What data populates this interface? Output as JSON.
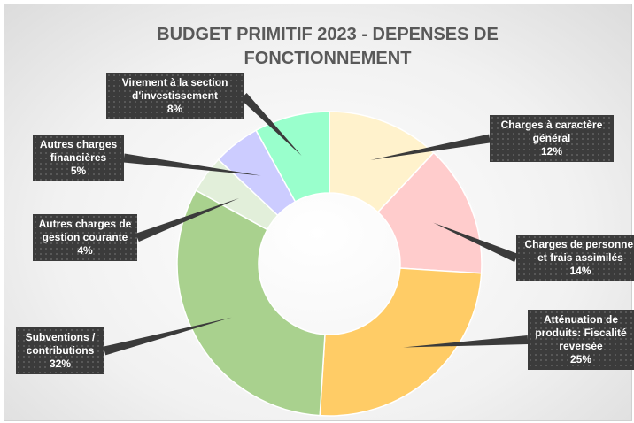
{
  "chart_data": {
    "type": "donut",
    "title": "BUDGET PRIMITIF 2023 - DEPENSES DE FONCTIONNEMENT",
    "categories": [
      "Charges à caractère général",
      "Charges de personnel et frais assimilés",
      "Atténuation de produits: Fiscalité reversée",
      "Subventions / contributions",
      "Autres charges de gestion courante",
      "Autres charges financières",
      "Virement à la section d'investissement"
    ],
    "values": [
      12,
      14,
      25,
      32,
      4,
      5,
      8
    ],
    "value_labels": [
      "12%",
      "14%",
      "25%",
      "32%",
      "4%",
      "5%",
      "8%"
    ],
    "colors": [
      "#fff2cc",
      "#ffcccc",
      "#ffcc66",
      "#a9d18e",
      "#e2efda",
      "#ccccff",
      "#99ffcc"
    ]
  }
}
